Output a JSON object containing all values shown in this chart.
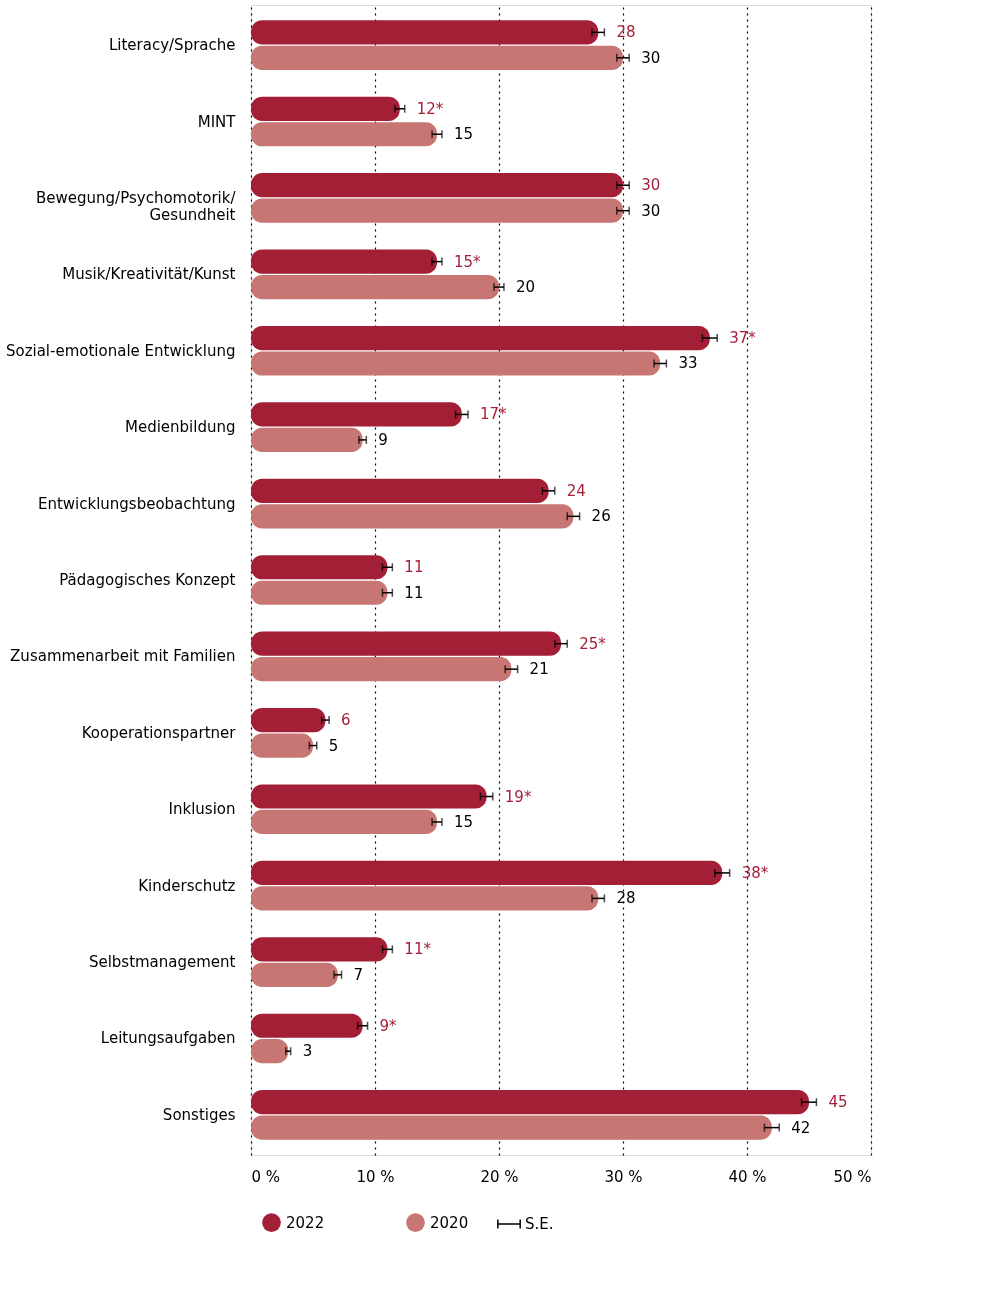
{
  "chart_data": {
    "type": "bar",
    "orientation": "horizontal",
    "categories": [
      "Literacy/Sprache",
      "MINT",
      "Bewegung/Psychomotorik/\nGesundheit",
      "Musik/Kreativität/Kunst",
      "Sozial-emotionale Entwicklung",
      "Medienbildung",
      "Entwicklungsbeobachtung",
      "Pädagogisches Konzept",
      "Zusammenarbeit mit Familien",
      "Kooperationspartner",
      "Inklusion",
      "Kinderschutz",
      "Selbstmanagement",
      "Leitungsaufgaben",
      "Sonstiges"
    ],
    "series": [
      {
        "name": "2022",
        "color": "#a31f36",
        "values": [
          28,
          12,
          30,
          15,
          37,
          17,
          24,
          11,
          25,
          6,
          19,
          38,
          11,
          9,
          45
        ],
        "errors": [
          0.5,
          0.4,
          0.5,
          0.4,
          0.6,
          0.5,
          0.5,
          0.4,
          0.5,
          0.3,
          0.5,
          0.6,
          0.4,
          0.4,
          0.6
        ],
        "value_labels": [
          "28",
          "12*",
          "30",
          "15*",
          "37*",
          "17*",
          "24",
          "11",
          "25*",
          "6",
          "19*",
          "38*",
          "11*",
          "9*",
          "45"
        ]
      },
      {
        "name": "2020",
        "color": "#c87673",
        "values": [
          30,
          15,
          30,
          20,
          33,
          9,
          26,
          11,
          21,
          5,
          15,
          28,
          7,
          3,
          42
        ],
        "errors": [
          0.5,
          0.4,
          0.5,
          0.4,
          0.5,
          0.3,
          0.5,
          0.4,
          0.5,
          0.3,
          0.4,
          0.5,
          0.3,
          0.2,
          0.6
        ],
        "value_labels": [
          "30",
          "15",
          "30",
          "20",
          "33",
          "9",
          "26",
          "11",
          "21",
          "5",
          "15",
          "28",
          "7",
          "3",
          "42"
        ]
      }
    ],
    "xlim": [
      0,
      50
    ],
    "xticks": [
      {
        "value": 0,
        "label": "0 %"
      },
      {
        "value": 10,
        "label": "10 %"
      },
      {
        "value": 20,
        "label": "20 %"
      },
      {
        "value": 30,
        "label": "30 %"
      },
      {
        "value": 40,
        "label": "40 %"
      },
      {
        "value": 50,
        "label": "50 %"
      }
    ],
    "grid": "x",
    "legend": "bottom",
    "annotations": [
      "S.E."
    ]
  }
}
